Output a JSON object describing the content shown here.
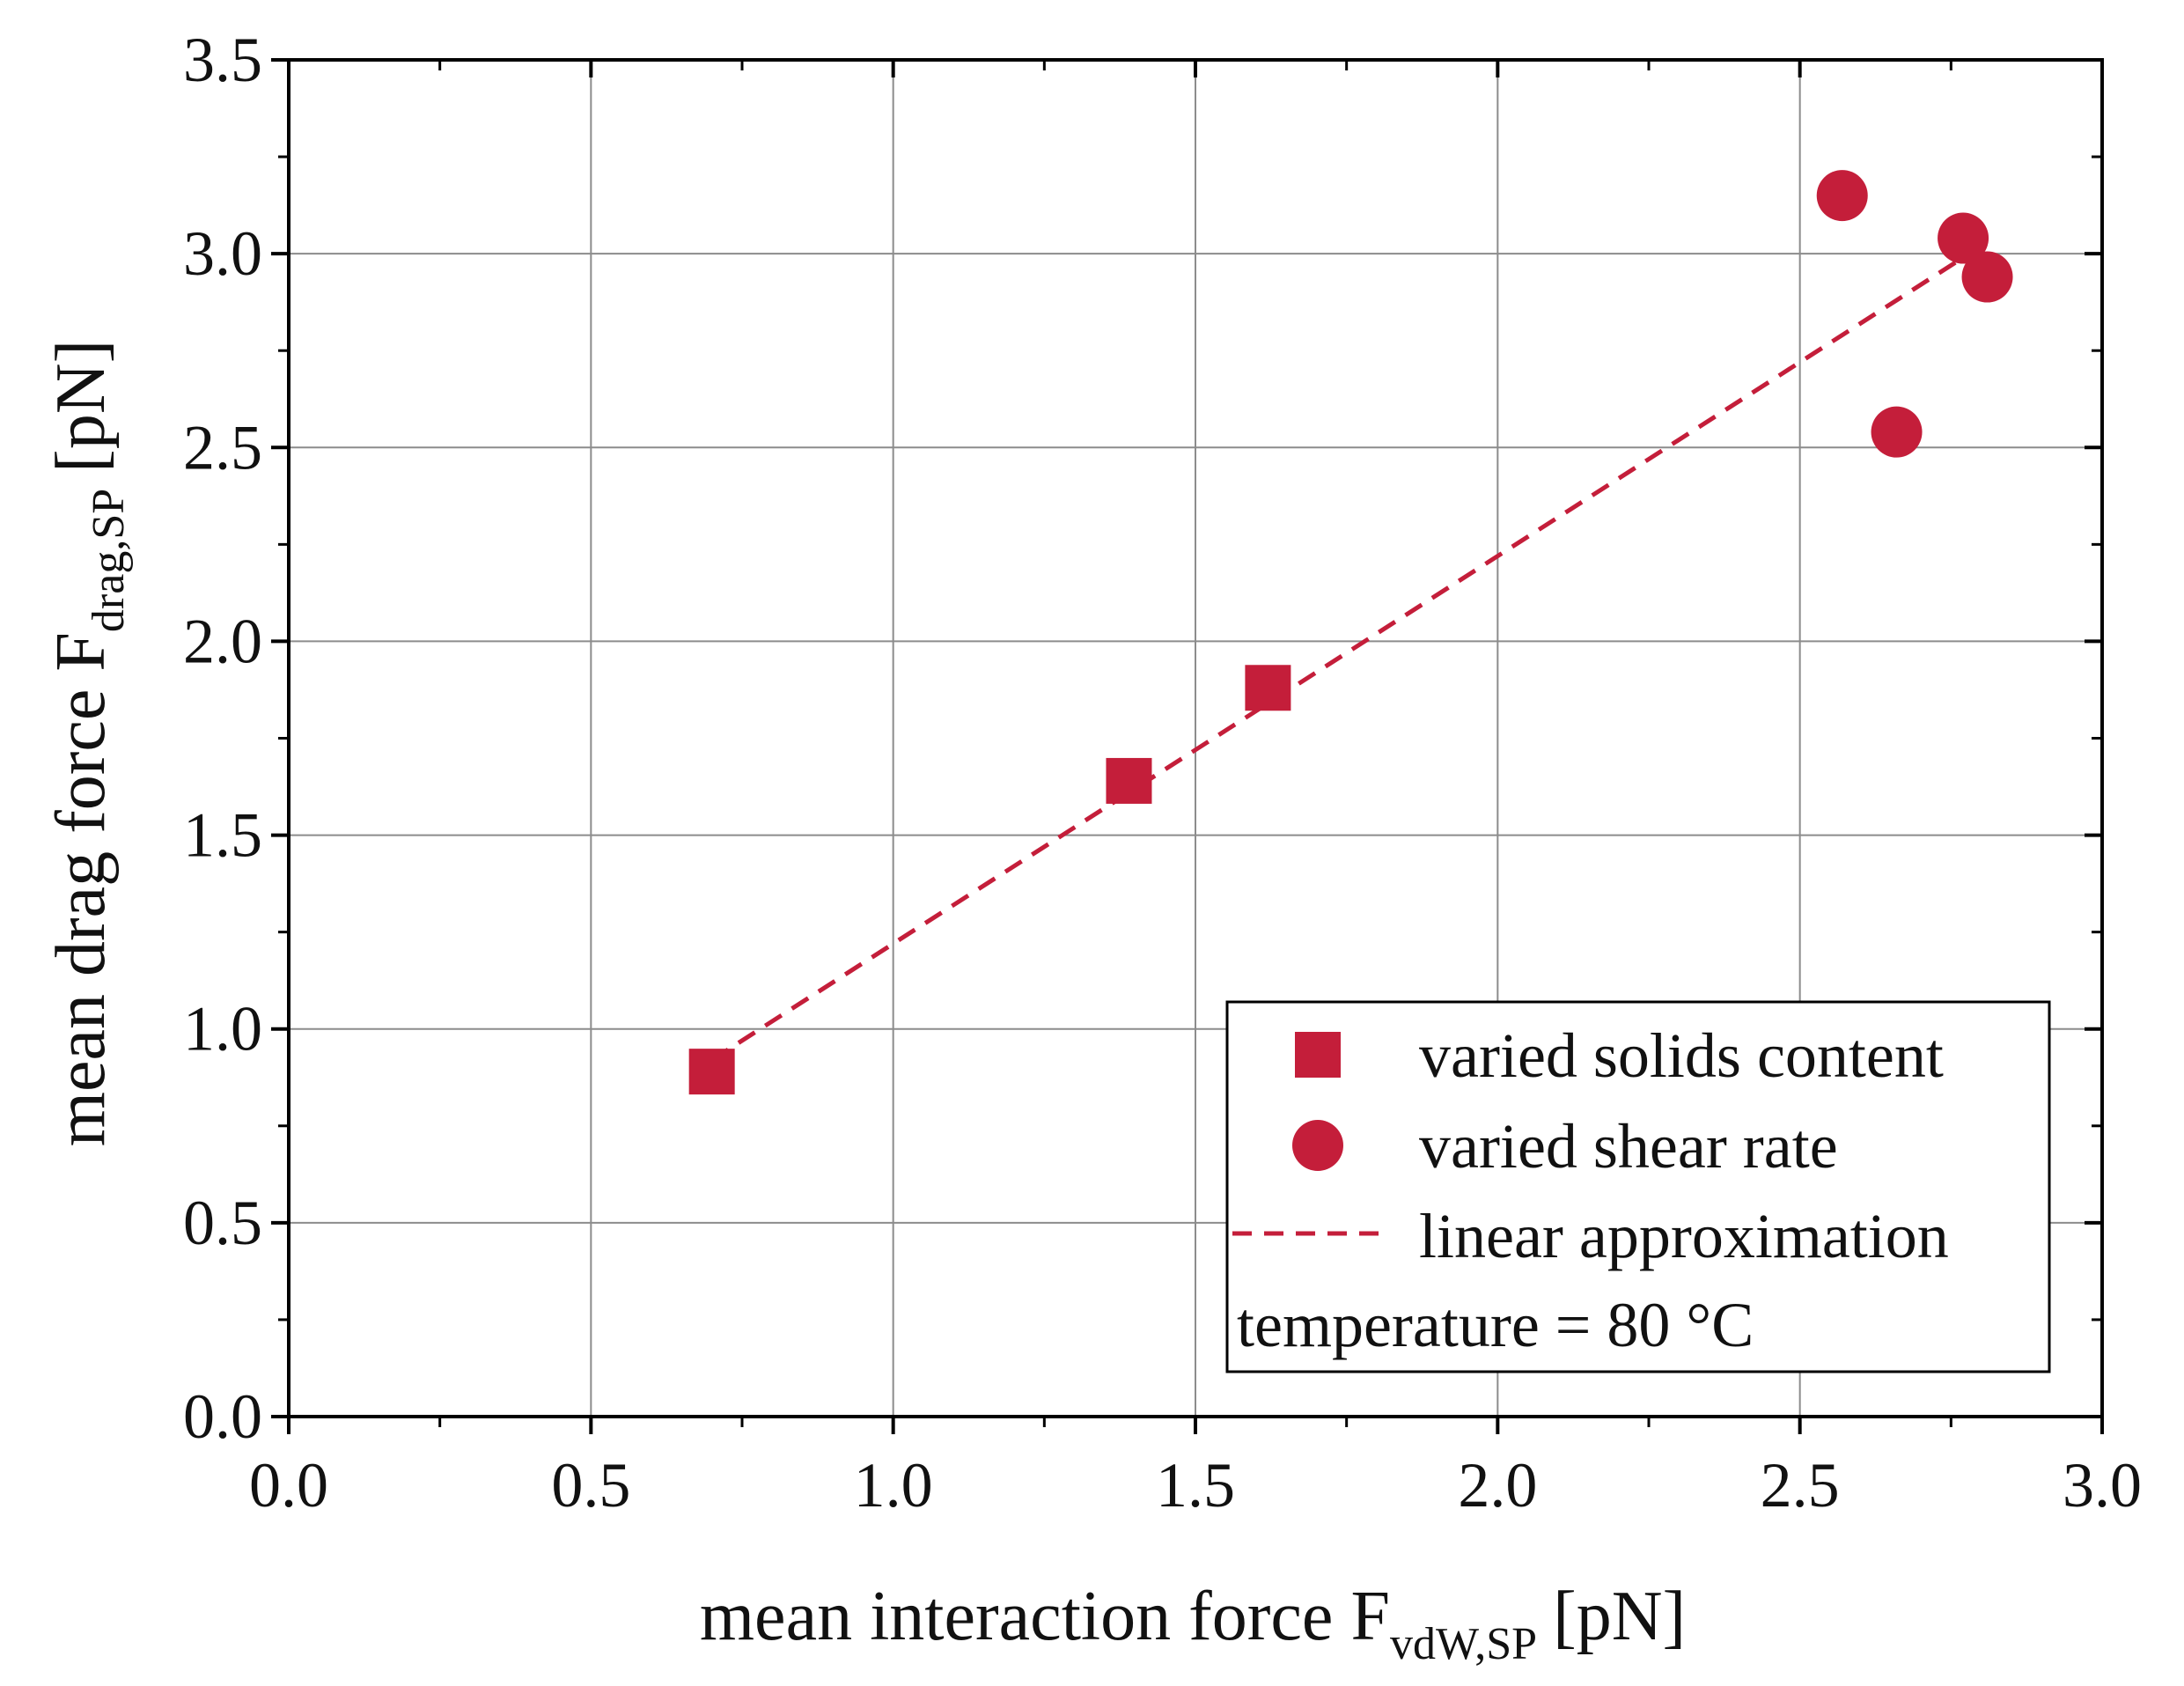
{
  "chart_data": {
    "type": "scatter",
    "title": "",
    "xlabel": {
      "main": "mean interaction force F",
      "sub": "vdW,SP",
      "unit": "[pN]"
    },
    "ylabel": {
      "main": "mean drag force F",
      "sub": "drag,SP",
      "unit": "[pN]"
    },
    "xlim": [
      0,
      3.0
    ],
    "ylim": [
      0,
      3.5
    ],
    "x_ticks": [
      0.0,
      0.5,
      1.0,
      1.5,
      2.0,
      2.5,
      3.0
    ],
    "y_ticks": [
      0.0,
      0.5,
      1.0,
      1.5,
      2.0,
      2.5,
      3.0,
      3.5
    ],
    "x_tick_labels": [
      "0.0",
      "0.5",
      "1.0",
      "1.5",
      "2.0",
      "2.5",
      "3.0"
    ],
    "y_tick_labels": [
      "0.0",
      "0.5",
      "1.0",
      "1.5",
      "2.0",
      "2.5",
      "3.0",
      "3.5"
    ],
    "grid": true,
    "color": "#c41e3a",
    "series": [
      {
        "name": "varied solids content",
        "marker": "square",
        "x": [
          0.7,
          1.39,
          1.62
        ],
        "y": [
          0.89,
          1.64,
          1.88
        ]
      },
      {
        "name": "varied shear rate",
        "marker": "circle",
        "x": [
          2.57,
          2.66,
          2.77,
          2.81
        ],
        "y": [
          3.15,
          2.54,
          3.04,
          2.94
        ]
      },
      {
        "name": "linear approximation",
        "marker": "dashed-line",
        "x": [
          0.7,
          2.8
        ],
        "y": [
          0.92,
          3.02
        ]
      }
    ],
    "annotation": "temperature = 80 °C",
    "legend_position": "bottom-right"
  }
}
